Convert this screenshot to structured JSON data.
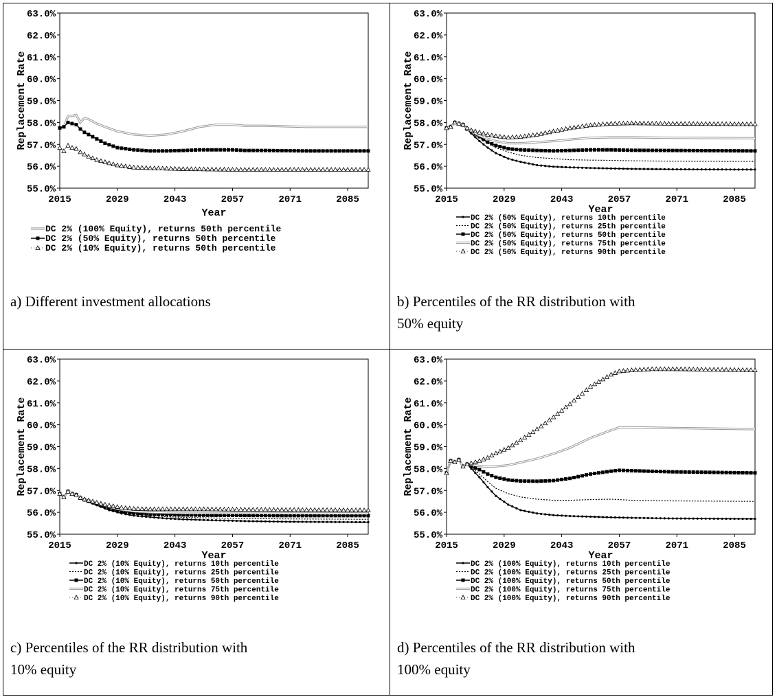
{
  "panels": [
    {
      "caption": "a) Different investment allocations"
    },
    {
      "caption": "b) Percentiles of the RR distribution with 50% equity"
    },
    {
      "caption": "c) Percentiles of the RR distribution with 10% equity"
    },
    {
      "caption": "d) Percentiles of the RR distribution with 100% equity"
    }
  ],
  "chart_data": [
    {
      "type": "line",
      "xlabel": "Year",
      "ylabel": "Replacement Rate",
      "ylim": [
        55.0,
        63.0
      ],
      "xlim": [
        2015,
        2090
      ],
      "yticks": [
        "55.0%",
        "56.0%",
        "57.0%",
        "58.0%",
        "59.0%",
        "60.0%",
        "61.0%",
        "62.0%",
        "63.0%"
      ],
      "xticks": [
        "2015",
        "2029",
        "2043",
        "2057",
        "2071",
        "2085"
      ],
      "grid": false,
      "legend_position": "bottom",
      "series": [
        {
          "name": "DC 2% (100% Equity), returns 50th percentile",
          "style": "double",
          "x": [
            2015,
            2016,
            2017,
            2018,
            2019,
            2020,
            2021,
            2022,
            2024,
            2026,
            2029,
            2033,
            2037,
            2041,
            2045,
            2049,
            2053,
            2057,
            2060,
            2065,
            2075,
            2090
          ],
          "y": [
            57.75,
            57.8,
            58.3,
            58.3,
            58.35,
            58.0,
            58.2,
            58.15,
            57.95,
            57.8,
            57.6,
            57.45,
            57.4,
            57.45,
            57.6,
            57.8,
            57.9,
            57.9,
            57.85,
            57.85,
            57.8,
            57.8
          ]
        },
        {
          "name": "DC 2% (50% Equity), returns 50th percentile",
          "style": "square",
          "x": [
            2015,
            2016,
            2017,
            2018,
            2019,
            2020,
            2021,
            2022,
            2024,
            2026,
            2029,
            2033,
            2037,
            2041,
            2045,
            2049,
            2053,
            2057,
            2060,
            2065,
            2075,
            2090
          ],
          "y": [
            57.75,
            57.8,
            58.0,
            57.95,
            57.9,
            57.7,
            57.55,
            57.45,
            57.25,
            57.05,
            56.85,
            56.75,
            56.7,
            56.7,
            56.72,
            56.75,
            56.75,
            56.75,
            56.72,
            56.72,
            56.7,
            56.7
          ]
        },
        {
          "name": "DC 2% (10% Equity), returns 50th percentile",
          "style": "triangle",
          "x": [
            2015,
            2016,
            2017,
            2018,
            2019,
            2020,
            2021,
            2022,
            2024,
            2026,
            2029,
            2033,
            2037,
            2041,
            2045,
            2049,
            2053,
            2057,
            2060,
            2065,
            2075,
            2090
          ],
          "y": [
            56.85,
            56.7,
            56.95,
            56.85,
            56.8,
            56.65,
            56.55,
            56.45,
            56.3,
            56.2,
            56.05,
            55.95,
            55.92,
            55.9,
            55.88,
            55.87,
            55.86,
            55.85,
            55.85,
            55.85,
            55.85,
            55.85
          ]
        }
      ]
    },
    {
      "type": "line",
      "xlabel": "Year",
      "ylabel": "Replacement Rate",
      "ylim": [
        55.0,
        63.0
      ],
      "xlim": [
        2015,
        2090
      ],
      "yticks": [
        "55.0%",
        "56.0%",
        "57.0%",
        "58.0%",
        "59.0%",
        "60.0%",
        "61.0%",
        "62.0%",
        "63.0%"
      ],
      "xticks": [
        "2015",
        "2029",
        "2043",
        "2057",
        "2071",
        "2085"
      ],
      "grid": false,
      "legend_position": "bottom",
      "series": [
        {
          "name": "DC 2% (50% Equity), returns 10th percentile",
          "style": "dot",
          "x": [
            2015,
            2016,
            2017,
            2018,
            2019,
            2020,
            2021,
            2023,
            2025,
            2027,
            2030,
            2033,
            2037,
            2041,
            2045,
            2050,
            2055,
            2060,
            2070,
            2090
          ],
          "y": [
            57.75,
            57.8,
            58.0,
            57.95,
            57.85,
            57.7,
            57.5,
            57.15,
            56.85,
            56.6,
            56.35,
            56.2,
            56.05,
            55.98,
            55.95,
            55.92,
            55.9,
            55.88,
            55.86,
            55.85
          ]
        },
        {
          "name": "DC 2% (50% Equity), returns 25th percentile",
          "style": "dash",
          "x": [
            2015,
            2016,
            2017,
            2018,
            2019,
            2020,
            2021,
            2023,
            2025,
            2027,
            2030,
            2033,
            2037,
            2041,
            2045,
            2050,
            2055,
            2060,
            2070,
            2090
          ],
          "y": [
            57.75,
            57.8,
            58.0,
            57.95,
            57.85,
            57.7,
            57.55,
            57.3,
            57.05,
            56.85,
            56.65,
            56.5,
            56.4,
            56.35,
            56.3,
            56.28,
            56.27,
            56.25,
            56.23,
            56.22
          ]
        },
        {
          "name": "DC 2% (50% Equity), returns 50th percentile",
          "style": "square",
          "x": [
            2015,
            2016,
            2017,
            2018,
            2019,
            2020,
            2021,
            2023,
            2025,
            2027,
            2030,
            2033,
            2037,
            2041,
            2045,
            2050,
            2055,
            2060,
            2070,
            2090
          ],
          "y": [
            57.75,
            57.8,
            58.0,
            57.95,
            57.9,
            57.7,
            57.6,
            57.35,
            57.1,
            56.95,
            56.8,
            56.75,
            56.72,
            56.7,
            56.72,
            56.75,
            56.75,
            56.73,
            56.72,
            56.7
          ]
        },
        {
          "name": "DC 2% (50% Equity), returns 75th percentile",
          "style": "double",
          "x": [
            2015,
            2016,
            2017,
            2018,
            2019,
            2020,
            2021,
            2023,
            2025,
            2027,
            2030,
            2033,
            2037,
            2041,
            2045,
            2050,
            2055,
            2060,
            2070,
            2090
          ],
          "y": [
            57.75,
            57.8,
            58.0,
            57.95,
            57.9,
            57.72,
            57.6,
            57.4,
            57.25,
            57.15,
            57.05,
            57.05,
            57.1,
            57.15,
            57.22,
            57.3,
            57.32,
            57.32,
            57.3,
            57.28
          ]
        },
        {
          "name": "DC 2% (50% Equity), returns 90th percentile",
          "style": "triangle",
          "x": [
            2015,
            2016,
            2017,
            2018,
            2019,
            2020,
            2021,
            2023,
            2025,
            2027,
            2030,
            2033,
            2037,
            2041,
            2045,
            2050,
            2055,
            2060,
            2070,
            2090
          ],
          "y": [
            57.75,
            57.8,
            58.0,
            57.95,
            57.9,
            57.75,
            57.65,
            57.55,
            57.45,
            57.38,
            57.32,
            57.35,
            57.45,
            57.6,
            57.75,
            57.88,
            57.95,
            57.97,
            57.95,
            57.93
          ]
        }
      ]
    },
    {
      "type": "line",
      "xlabel": "Year",
      "ylabel": "Replacement Rate",
      "ylim": [
        55.0,
        63.0
      ],
      "xlim": [
        2015,
        2090
      ],
      "yticks": [
        "55.0%",
        "56.0%",
        "57.0%",
        "58.0%",
        "59.0%",
        "60.0%",
        "61.0%",
        "62.0%",
        "63.0%"
      ],
      "xticks": [
        "2015",
        "2029",
        "2043",
        "2057",
        "2071",
        "2085"
      ],
      "grid": false,
      "legend_position": "bottom",
      "series": [
        {
          "name": "DC 2% (10% Equity), returns 10th percentile",
          "style": "dot",
          "x": [
            2015,
            2016,
            2017,
            2018,
            2019,
            2020,
            2021,
            2023,
            2025,
            2027,
            2030,
            2033,
            2037,
            2041,
            2045,
            2050,
            2060,
            2070,
            2090
          ],
          "y": [
            56.85,
            56.7,
            56.95,
            56.85,
            56.8,
            56.65,
            56.55,
            56.4,
            56.25,
            56.1,
            55.95,
            55.85,
            55.78,
            55.72,
            55.68,
            55.65,
            55.6,
            55.57,
            55.55
          ]
        },
        {
          "name": "DC 2% (10% Equity), returns 25th percentile",
          "style": "dash",
          "x": [
            2015,
            2016,
            2017,
            2018,
            2019,
            2020,
            2021,
            2023,
            2025,
            2027,
            2030,
            2033,
            2037,
            2041,
            2045,
            2050,
            2060,
            2070,
            2090
          ],
          "y": [
            56.85,
            56.7,
            56.95,
            56.85,
            56.8,
            56.65,
            56.55,
            56.42,
            56.28,
            56.15,
            56.0,
            55.92,
            55.85,
            55.8,
            55.77,
            55.75,
            55.72,
            55.7,
            55.68
          ]
        },
        {
          "name": "DC 2% (10% Equity), returns 50th percentile",
          "style": "square",
          "x": [
            2015,
            2016,
            2017,
            2018,
            2019,
            2020,
            2021,
            2023,
            2025,
            2027,
            2030,
            2033,
            2037,
            2041,
            2045,
            2050,
            2060,
            2070,
            2090
          ],
          "y": [
            56.85,
            56.7,
            56.95,
            56.85,
            56.8,
            56.65,
            56.57,
            56.45,
            56.32,
            56.2,
            56.05,
            55.97,
            55.92,
            55.9,
            55.88,
            55.87,
            55.86,
            55.85,
            55.85
          ]
        },
        {
          "name": "DC 2% (10% Equity), returns 75th percentile",
          "style": "double",
          "x": [
            2015,
            2016,
            2017,
            2018,
            2019,
            2020,
            2021,
            2023,
            2025,
            2027,
            2030,
            2033,
            2037,
            2041,
            2045,
            2050,
            2060,
            2070,
            2090
          ],
          "y": [
            56.85,
            56.7,
            56.95,
            56.85,
            56.8,
            56.66,
            56.58,
            56.47,
            56.36,
            56.25,
            56.12,
            56.05,
            56.0,
            55.98,
            55.97,
            55.97,
            55.97,
            55.96,
            55.95
          ]
        },
        {
          "name": "DC 2% (10% Equity), returns 90th percentile",
          "style": "triangle",
          "x": [
            2015,
            2016,
            2017,
            2018,
            2019,
            2020,
            2021,
            2023,
            2025,
            2027,
            2030,
            2033,
            2037,
            2041,
            2045,
            2050,
            2060,
            2070,
            2090
          ],
          "y": [
            56.85,
            56.7,
            56.95,
            56.85,
            56.8,
            56.67,
            56.6,
            56.5,
            56.4,
            56.32,
            56.22,
            56.17,
            56.15,
            56.15,
            56.15,
            56.15,
            56.13,
            56.12,
            56.1
          ]
        }
      ]
    },
    {
      "type": "line",
      "xlabel": "Year",
      "ylabel": "Replacement Rate",
      "ylim": [
        55.0,
        63.0
      ],
      "xlim": [
        2015,
        2090
      ],
      "yticks": [
        "55.0%",
        "56.0%",
        "57.0%",
        "58.0%",
        "59.0%",
        "60.0%",
        "61.0%",
        "62.0%",
        "63.0%"
      ],
      "xticks": [
        "2015",
        "2029",
        "2043",
        "2057",
        "2071",
        "2085"
      ],
      "grid": false,
      "legend_position": "bottom",
      "series": [
        {
          "name": "DC 2% (100% Equity), returns 10th percentile",
          "style": "dot",
          "x": [
            2015,
            2016,
            2017,
            2018,
            2019,
            2020,
            2021,
            2023,
            2025,
            2027,
            2030,
            2033,
            2037,
            2041,
            2045,
            2050,
            2055,
            2060,
            2070,
            2090
          ],
          "y": [
            57.8,
            58.35,
            58.3,
            58.4,
            58.1,
            58.2,
            58.0,
            57.6,
            57.15,
            56.75,
            56.35,
            56.1,
            55.95,
            55.87,
            55.83,
            55.8,
            55.77,
            55.75,
            55.72,
            55.7
          ]
        },
        {
          "name": "DC 2% (100% Equity), returns 25th percentile",
          "style": "dash",
          "x": [
            2015,
            2016,
            2017,
            2018,
            2019,
            2020,
            2021,
            2023,
            2025,
            2027,
            2030,
            2033,
            2037,
            2041,
            2045,
            2050,
            2055,
            2060,
            2070,
            2090
          ],
          "y": [
            57.8,
            58.35,
            58.3,
            58.4,
            58.1,
            58.2,
            58.05,
            57.75,
            57.4,
            57.1,
            56.85,
            56.7,
            56.6,
            56.55,
            56.55,
            56.58,
            56.6,
            56.55,
            56.52,
            56.5
          ]
        },
        {
          "name": "DC 2% (100% Equity), returns 50th percentile",
          "style": "square",
          "x": [
            2015,
            2016,
            2017,
            2018,
            2019,
            2020,
            2021,
            2023,
            2025,
            2027,
            2030,
            2033,
            2037,
            2041,
            2045,
            2050,
            2055,
            2057,
            2060,
            2070,
            2090
          ],
          "y": [
            57.8,
            58.35,
            58.3,
            58.4,
            58.1,
            58.2,
            58.1,
            57.95,
            57.75,
            57.6,
            57.48,
            57.43,
            57.42,
            57.45,
            57.55,
            57.75,
            57.88,
            57.92,
            57.9,
            57.85,
            57.8
          ]
        },
        {
          "name": "DC 2% (100% Equity), returns 75th percentile",
          "style": "double",
          "x": [
            2015,
            2016,
            2017,
            2018,
            2019,
            2020,
            2021,
            2023,
            2025,
            2027,
            2030,
            2033,
            2037,
            2041,
            2045,
            2050,
            2055,
            2057,
            2060,
            2070,
            2090
          ],
          "y": [
            57.8,
            58.35,
            58.3,
            58.4,
            58.1,
            58.2,
            58.18,
            58.12,
            58.08,
            58.1,
            58.15,
            58.28,
            58.45,
            58.68,
            58.95,
            59.4,
            59.75,
            59.88,
            59.88,
            59.85,
            59.8
          ]
        },
        {
          "name": "DC 2% (100% Equity), returns 90th percentile",
          "style": "triangle",
          "x": [
            2015,
            2016,
            2017,
            2018,
            2019,
            2020,
            2021,
            2023,
            2025,
            2027,
            2030,
            2033,
            2037,
            2041,
            2045,
            2050,
            2055,
            2057,
            2060,
            2065,
            2070,
            2090
          ],
          "y": [
            57.8,
            58.35,
            58.3,
            58.4,
            58.1,
            58.2,
            58.25,
            58.35,
            58.5,
            58.7,
            58.95,
            59.3,
            59.8,
            60.35,
            60.95,
            61.75,
            62.3,
            62.45,
            62.5,
            62.55,
            62.55,
            62.5
          ]
        }
      ]
    }
  ]
}
